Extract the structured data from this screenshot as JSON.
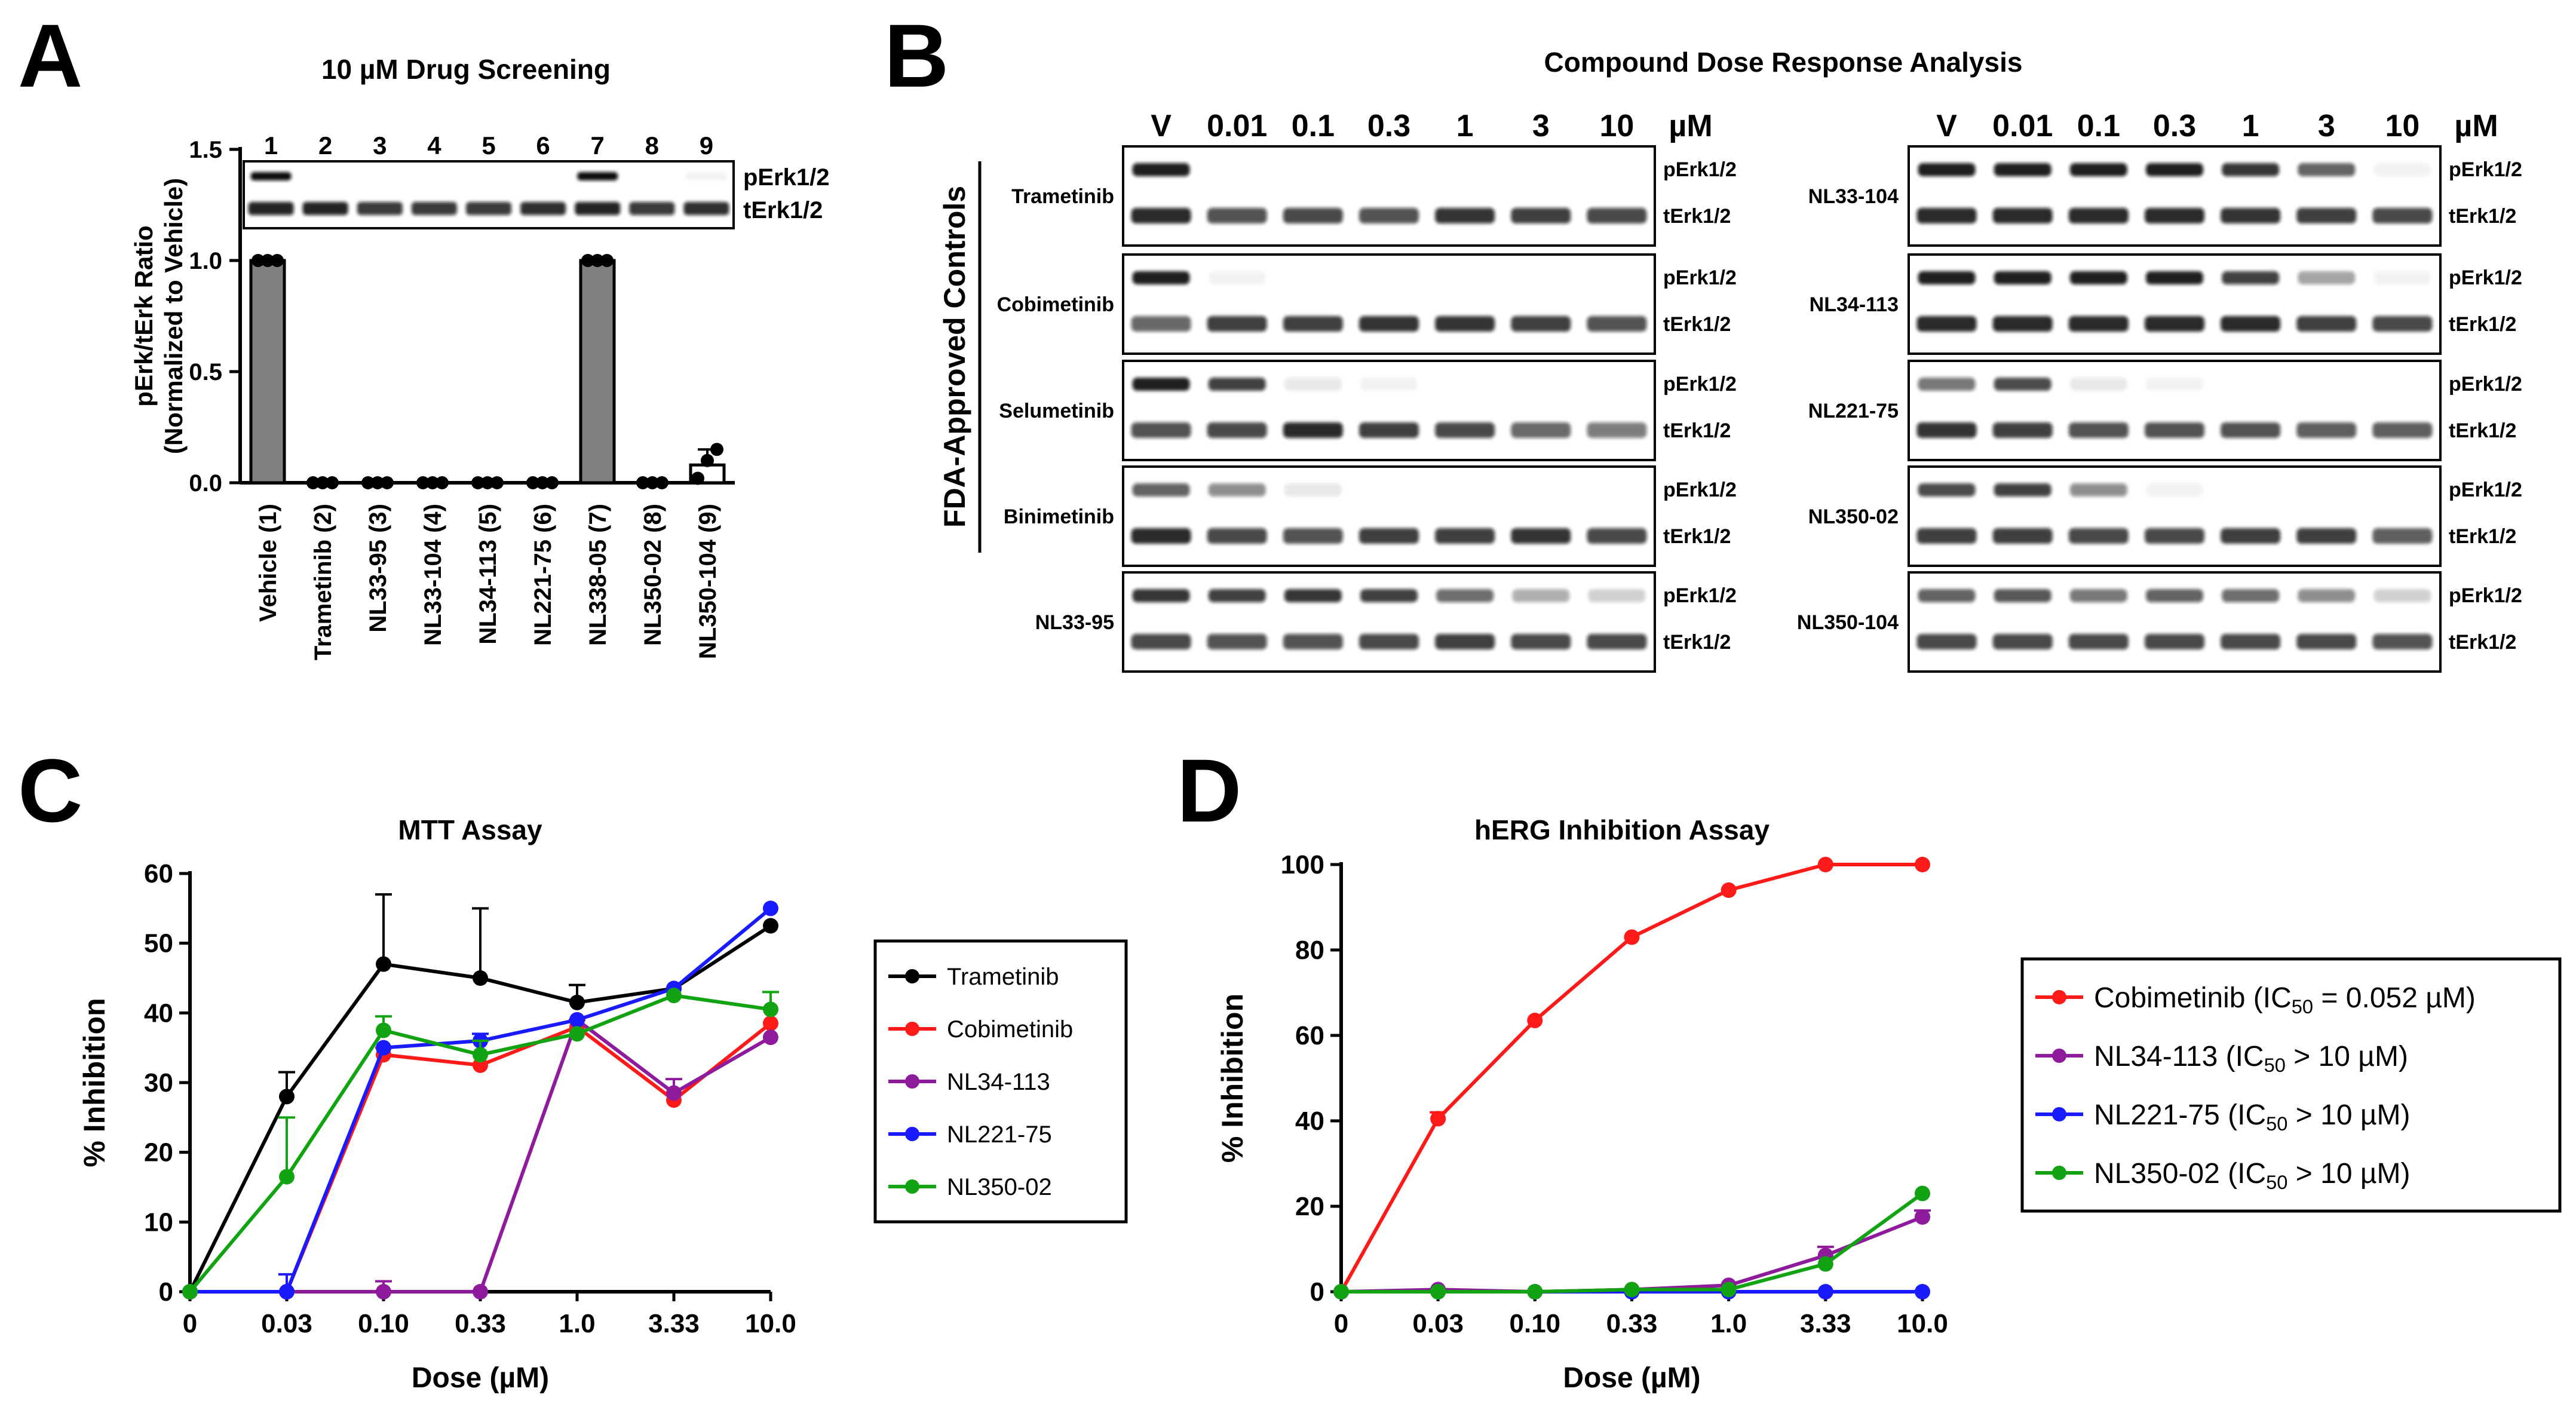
{
  "panels": {
    "a": {
      "letter": "A",
      "title": "10 µM Drug Screening"
    },
    "b": {
      "letter": "B",
      "title": "Compound Dose Response Analysis"
    },
    "c": {
      "letter": "C",
      "title": "MTT Assay"
    },
    "d": {
      "letter": "D",
      "title": "hERG Inhibition Assay"
    }
  },
  "colors": {
    "black": "#000000",
    "red": "#ff1a1a",
    "purple": "#8e1a9c",
    "blue": "#1a1aff",
    "green": "#12a312",
    "bar": "#808080"
  },
  "blot_a": {
    "lanes": [
      "1",
      "2",
      "3",
      "4",
      "5",
      "6",
      "7",
      "8",
      "9"
    ],
    "band_labels": [
      "pErk1/2",
      "tErk1/2"
    ],
    "pErk_intensity": [
      1,
      0,
      0,
      0,
      0,
      0,
      1,
      0,
      0.05
    ],
    "tErk_intensity": [
      1,
      1,
      0.9,
      0.9,
      0.9,
      0.95,
      1,
      0.9,
      0.95
    ]
  },
  "blot_b": {
    "dose_labels": [
      "V",
      "0.01",
      "0.1",
      "0.3",
      "1",
      "3",
      "10",
      "µM"
    ],
    "band_labels": [
      "pErk1/2",
      "tErk1/2"
    ],
    "group_label": "FDA-Approved Controls",
    "left_rows": [
      {
        "name": "Trametinib",
        "p": [
          1,
          0,
          0,
          0,
          0,
          0,
          0
        ],
        "t": [
          1,
          0.8,
          0.85,
          0.8,
          0.95,
          0.9,
          0.85
        ]
      },
      {
        "name": "Cobimetinib",
        "p": [
          1,
          0.05,
          0,
          0,
          0,
          0,
          0
        ],
        "t": [
          0.7,
          0.9,
          0.9,
          0.95,
          0.95,
          0.9,
          0.8
        ]
      },
      {
        "name": "Selumetinib",
        "p": [
          1,
          0.85,
          0.1,
          0.05,
          0,
          0,
          0
        ],
        "t": [
          0.8,
          0.85,
          1,
          0.9,
          0.85,
          0.7,
          0.6
        ]
      },
      {
        "name": "Binimetinib",
        "p": [
          0.7,
          0.5,
          0.1,
          0,
          0,
          0,
          0
        ],
        "t": [
          1,
          0.85,
          0.8,
          0.9,
          0.9,
          0.95,
          0.85
        ]
      },
      {
        "name": "NL33-95",
        "p": [
          0.9,
          0.85,
          0.9,
          0.85,
          0.65,
          0.35,
          0.2
        ],
        "t": [
          0.85,
          0.8,
          0.8,
          0.85,
          0.9,
          0.85,
          0.85
        ]
      }
    ],
    "right_rows": [
      {
        "name": "NL33-104",
        "p": [
          1,
          1,
          1,
          1,
          0.9,
          0.7,
          0.05
        ],
        "t": [
          1,
          1,
          1,
          1,
          0.95,
          0.9,
          0.85
        ]
      },
      {
        "name": "NL34-113",
        "p": [
          1,
          1,
          1,
          1,
          0.85,
          0.4,
          0.05
        ],
        "t": [
          1,
          1,
          1,
          1,
          1,
          0.9,
          0.85
        ]
      },
      {
        "name": "NL221-75",
        "p": [
          0.6,
          0.8,
          0.1,
          0.05,
          0,
          0,
          0
        ],
        "t": [
          0.95,
          0.9,
          0.8,
          0.8,
          0.8,
          0.75,
          0.75
        ]
      },
      {
        "name": "NL350-02",
        "p": [
          0.8,
          0.85,
          0.5,
          0.05,
          0,
          0,
          0
        ],
        "t": [
          0.9,
          0.9,
          0.85,
          0.85,
          0.9,
          0.9,
          0.75
        ]
      },
      {
        "name": "NL350-104",
        "p": [
          0.7,
          0.75,
          0.6,
          0.7,
          0.65,
          0.5,
          0.2
        ],
        "t": [
          0.85,
          0.85,
          0.85,
          0.85,
          0.85,
          0.85,
          0.8
        ]
      }
    ]
  },
  "chart_data": [
    {
      "id": "a",
      "type": "bar",
      "title": "10 µM Drug Screening",
      "ylabel": "pErk/tErk Ratio",
      "ylabel2": "(Normalized to Vehicle)",
      "categories": [
        "Vehicle (1)",
        "Trametinib (2)",
        "NL33-95 (3)",
        "NL33-104 (4)",
        "NL34-113 (5)",
        "NL221-75 (6)",
        "NL338-05 (7)",
        "NL350-02 (8)",
        "NL350-104 (9)"
      ],
      "values": [
        1.0,
        0.0,
        0.0,
        0.0,
        0.0,
        0.0,
        1.0,
        0.0,
        0.08
      ],
      "errors": [
        0,
        0,
        0,
        0,
        0,
        0,
        0,
        0,
        0.07
      ],
      "points": [
        [
          1,
          1,
          1
        ],
        [
          0,
          0,
          0
        ],
        [
          0,
          0,
          0
        ],
        [
          0,
          0,
          0
        ],
        [
          0,
          0,
          0
        ],
        [
          0,
          0,
          0
        ],
        [
          1,
          1,
          1
        ],
        [
          0,
          0,
          0
        ],
        [
          0.02,
          0.1,
          0.15
        ]
      ],
      "yticks": [
        "0.0",
        "0.5",
        "1.0",
        "1.5"
      ],
      "ylim": [
        0,
        1.5
      ]
    },
    {
      "id": "c",
      "type": "line",
      "title": "MTT Assay",
      "xlabel": "Dose (µM)",
      "ylabel": "% Inhibition",
      "x_labels": [
        "0",
        "0.03",
        "0.10",
        "0.33",
        "1.0",
        "3.33",
        "10.0"
      ],
      "yticks": [
        "0",
        "10",
        "20",
        "30",
        "40",
        "50",
        "60"
      ],
      "ylim": [
        0,
        60
      ],
      "series": [
        {
          "name": "Trametinib",
          "values": [
            0,
            28,
            47,
            45,
            41.5,
            43.5,
            52.5
          ],
          "errors": [
            0,
            3.5,
            10,
            10,
            2.5,
            0,
            0
          ],
          "color": "#000000"
        },
        {
          "name": "Cobimetinib",
          "values": [
            0,
            0,
            34,
            32.5,
            38,
            27.5,
            38.5
          ],
          "errors": [
            0,
            0,
            1,
            0,
            1,
            1,
            0
          ],
          "color": "#ff1a1a"
        },
        {
          "name": "NL34-113",
          "values": [
            0,
            0,
            0,
            0,
            39,
            28.5,
            36.5
          ],
          "errors": [
            0,
            0,
            1.5,
            0,
            0,
            2,
            0
          ],
          "color": "#8e1a9c"
        },
        {
          "name": "NL221-75",
          "values": [
            0,
            0,
            35,
            36,
            39,
            43.5,
            55
          ],
          "errors": [
            0,
            2.5,
            0,
            1,
            0,
            0,
            0
          ],
          "color": "#1a1aff"
        },
        {
          "name": "NL350-02",
          "values": [
            0,
            16.5,
            37.5,
            34,
            37,
            42.5,
            40.5
          ],
          "errors": [
            0,
            8.5,
            2,
            2,
            0,
            0,
            2.5
          ],
          "color": "#12a312"
        }
      ]
    },
    {
      "id": "d",
      "type": "line",
      "title": "hERG Inhibition Assay",
      "xlabel": "Dose (µM)",
      "ylabel": "% Inhibition",
      "x_labels": [
        "0",
        "0.03",
        "0.10",
        "0.33",
        "1.0",
        "3.33",
        "10.0"
      ],
      "yticks": [
        "0",
        "20",
        "40",
        "60",
        "80",
        "100"
      ],
      "ylim": [
        0,
        100
      ],
      "series": [
        {
          "name": "Cobimetinib",
          "legend_pre": "Cobimetinib (IC",
          "legend_sub": "50",
          "legend_post": " = 0.052 µM)",
          "values": [
            0,
            40.5,
            63.5,
            83,
            94,
            100,
            100
          ],
          "errors": [
            0,
            1.5,
            0,
            0,
            0,
            0,
            0
          ],
          "color": "#ff1a1a"
        },
        {
          "name": "NL34-113",
          "legend_pre": "NL34-113 (IC",
          "legend_sub": "50",
          "legend_post": " > 10 µM)",
          "values": [
            0,
            0.5,
            0,
            0.5,
            1.5,
            8.5,
            17.5
          ],
          "errors": [
            0,
            0,
            0,
            0,
            0,
            2,
            1.5
          ],
          "color": "#8e1a9c"
        },
        {
          "name": "NL221-75",
          "legend_pre": "NL221-75 (IC",
          "legend_sub": "50",
          "legend_post": " > 10 µM)",
          "values": [
            0,
            0,
            0,
            0,
            0,
            0,
            0
          ],
          "errors": [
            0,
            0,
            0,
            0,
            0,
            0,
            0
          ],
          "color": "#1a1aff"
        },
        {
          "name": "NL350-02",
          "legend_pre": "NL350-02 (IC",
          "legend_sub": "50",
          "legend_post": " > 10 µM)",
          "values": [
            0,
            0,
            0,
            0.5,
            0.5,
            6.5,
            23
          ],
          "errors": [
            0,
            0,
            0,
            0,
            0,
            0,
            0
          ],
          "color": "#12a312"
        }
      ]
    }
  ]
}
